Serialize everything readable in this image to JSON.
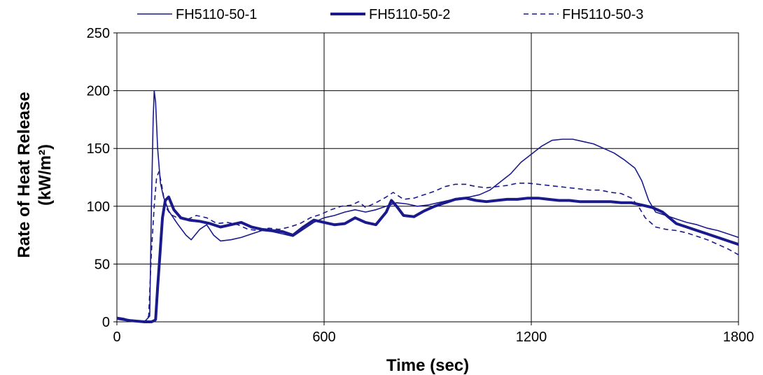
{
  "chart_data": {
    "type": "line",
    "xlabel": "Time (sec)",
    "ylabel_line1": "Rate of Heat Release",
    "ylabel_line2": "(kW/m²)",
    "xlim": [
      0,
      1800
    ],
    "ylim": [
      0,
      250
    ],
    "xticks": [
      0,
      600,
      1200,
      1800
    ],
    "yticks": [
      0,
      50,
      100,
      150,
      200,
      250
    ],
    "grid": true,
    "legend_position": "top",
    "line_color": "#1a1a8c",
    "series": [
      {
        "name": "FH5110-50-1",
        "style": "thin",
        "points": [
          [
            0,
            4
          ],
          [
            20,
            3
          ],
          [
            40,
            1
          ],
          [
            80,
            0
          ],
          [
            95,
            5
          ],
          [
            100,
            100
          ],
          [
            105,
            175
          ],
          [
            108,
            200
          ],
          [
            112,
            190
          ],
          [
            118,
            150
          ],
          [
            126,
            120
          ],
          [
            135,
            108
          ],
          [
            150,
            96
          ],
          [
            175,
            85
          ],
          [
            200,
            75
          ],
          [
            215,
            71
          ],
          [
            240,
            80
          ],
          [
            260,
            84
          ],
          [
            280,
            75
          ],
          [
            300,
            70
          ],
          [
            330,
            71
          ],
          [
            360,
            73
          ],
          [
            390,
            76
          ],
          [
            420,
            79
          ],
          [
            450,
            78
          ],
          [
            480,
            76
          ],
          [
            510,
            74
          ],
          [
            540,
            80
          ],
          [
            570,
            86
          ],
          [
            600,
            90
          ],
          [
            630,
            92
          ],
          [
            660,
            95
          ],
          [
            690,
            97
          ],
          [
            720,
            95
          ],
          [
            750,
            97
          ],
          [
            780,
            100
          ],
          [
            810,
            103
          ],
          [
            840,
            102
          ],
          [
            870,
            100
          ],
          [
            900,
            101
          ],
          [
            930,
            103
          ],
          [
            960,
            105
          ],
          [
            990,
            107
          ],
          [
            1020,
            108
          ],
          [
            1050,
            110
          ],
          [
            1080,
            114
          ],
          [
            1110,
            121
          ],
          [
            1140,
            128
          ],
          [
            1170,
            138
          ],
          [
            1200,
            145
          ],
          [
            1230,
            152
          ],
          [
            1260,
            157
          ],
          [
            1290,
            158
          ],
          [
            1320,
            158
          ],
          [
            1350,
            156
          ],
          [
            1380,
            154
          ],
          [
            1410,
            150
          ],
          [
            1440,
            146
          ],
          [
            1470,
            140
          ],
          [
            1500,
            133
          ],
          [
            1520,
            122
          ],
          [
            1540,
            105
          ],
          [
            1560,
            95
          ],
          [
            1590,
            92
          ],
          [
            1620,
            89
          ],
          [
            1650,
            86
          ],
          [
            1680,
            84
          ],
          [
            1710,
            81
          ],
          [
            1740,
            79
          ],
          [
            1770,
            76
          ],
          [
            1800,
            73
          ]
        ]
      },
      {
        "name": "FH5110-50-2",
        "style": "thick",
        "points": [
          [
            0,
            3
          ],
          [
            20,
            2
          ],
          [
            40,
            1
          ],
          [
            80,
            0
          ],
          [
            100,
            0
          ],
          [
            108,
            1
          ],
          [
            112,
            2
          ],
          [
            118,
            30
          ],
          [
            125,
            60
          ],
          [
            132,
            90
          ],
          [
            140,
            105
          ],
          [
            150,
            108
          ],
          [
            165,
            97
          ],
          [
            185,
            90
          ],
          [
            210,
            88
          ],
          [
            240,
            87
          ],
          [
            270,
            85
          ],
          [
            300,
            82
          ],
          [
            330,
            84
          ],
          [
            360,
            86
          ],
          [
            390,
            82
          ],
          [
            420,
            80
          ],
          [
            450,
            79
          ],
          [
            480,
            78
          ],
          [
            510,
            75
          ],
          [
            540,
            82
          ],
          [
            570,
            88
          ],
          [
            600,
            86
          ],
          [
            630,
            84
          ],
          [
            660,
            85
          ],
          [
            690,
            90
          ],
          [
            720,
            86
          ],
          [
            750,
            84
          ],
          [
            780,
            95
          ],
          [
            795,
            105
          ],
          [
            810,
            100
          ],
          [
            830,
            92
          ],
          [
            860,
            91
          ],
          [
            890,
            96
          ],
          [
            920,
            100
          ],
          [
            950,
            103
          ],
          [
            980,
            106
          ],
          [
            1010,
            107
          ],
          [
            1040,
            105
          ],
          [
            1070,
            104
          ],
          [
            1100,
            105
          ],
          [
            1130,
            106
          ],
          [
            1160,
            106
          ],
          [
            1190,
            107
          ],
          [
            1220,
            107
          ],
          [
            1250,
            106
          ],
          [
            1280,
            105
          ],
          [
            1310,
            105
          ],
          [
            1340,
            104
          ],
          [
            1370,
            104
          ],
          [
            1400,
            104
          ],
          [
            1430,
            104
          ],
          [
            1460,
            103
          ],
          [
            1490,
            103
          ],
          [
            1520,
            101
          ],
          [
            1550,
            99
          ],
          [
            1580,
            95
          ],
          [
            1600,
            90
          ],
          [
            1620,
            85
          ],
          [
            1650,
            82
          ],
          [
            1680,
            79
          ],
          [
            1710,
            76
          ],
          [
            1740,
            73
          ],
          [
            1770,
            70
          ],
          [
            1800,
            67
          ]
        ]
      },
      {
        "name": "FH5110-50-3",
        "style": "dashed",
        "points": [
          [
            0,
            3
          ],
          [
            20,
            2
          ],
          [
            40,
            1
          ],
          [
            80,
            0
          ],
          [
            92,
            5
          ],
          [
            100,
            60
          ],
          [
            108,
            100
          ],
          [
            115,
            125
          ],
          [
            122,
            130
          ],
          [
            130,
            118
          ],
          [
            140,
            100
          ],
          [
            155,
            93
          ],
          [
            175,
            90
          ],
          [
            200,
            88
          ],
          [
            230,
            92
          ],
          [
            260,
            90
          ],
          [
            290,
            85
          ],
          [
            320,
            86
          ],
          [
            350,
            84
          ],
          [
            380,
            80
          ],
          [
            410,
            79
          ],
          [
            440,
            81
          ],
          [
            470,
            80
          ],
          [
            500,
            82
          ],
          [
            530,
            85
          ],
          [
            560,
            90
          ],
          [
            590,
            93
          ],
          [
            620,
            97
          ],
          [
            650,
            100
          ],
          [
            680,
            101
          ],
          [
            700,
            104
          ],
          [
            720,
            99
          ],
          [
            750,
            103
          ],
          [
            780,
            108
          ],
          [
            800,
            112
          ],
          [
            830,
            106
          ],
          [
            860,
            107
          ],
          [
            890,
            110
          ],
          [
            920,
            113
          ],
          [
            950,
            117
          ],
          [
            980,
            119
          ],
          [
            1010,
            119
          ],
          [
            1040,
            117
          ],
          [
            1070,
            116
          ],
          [
            1100,
            117
          ],
          [
            1130,
            118
          ],
          [
            1160,
            120
          ],
          [
            1190,
            120
          ],
          [
            1220,
            119
          ],
          [
            1250,
            118
          ],
          [
            1280,
            117
          ],
          [
            1310,
            116
          ],
          [
            1340,
            115
          ],
          [
            1370,
            114
          ],
          [
            1400,
            114
          ],
          [
            1430,
            112
          ],
          [
            1460,
            111
          ],
          [
            1490,
            107
          ],
          [
            1510,
            100
          ],
          [
            1530,
            90
          ],
          [
            1560,
            82
          ],
          [
            1590,
            80
          ],
          [
            1620,
            79
          ],
          [
            1650,
            77
          ],
          [
            1680,
            74
          ],
          [
            1710,
            71
          ],
          [
            1740,
            67
          ],
          [
            1770,
            63
          ],
          [
            1800,
            58
          ]
        ]
      }
    ]
  }
}
